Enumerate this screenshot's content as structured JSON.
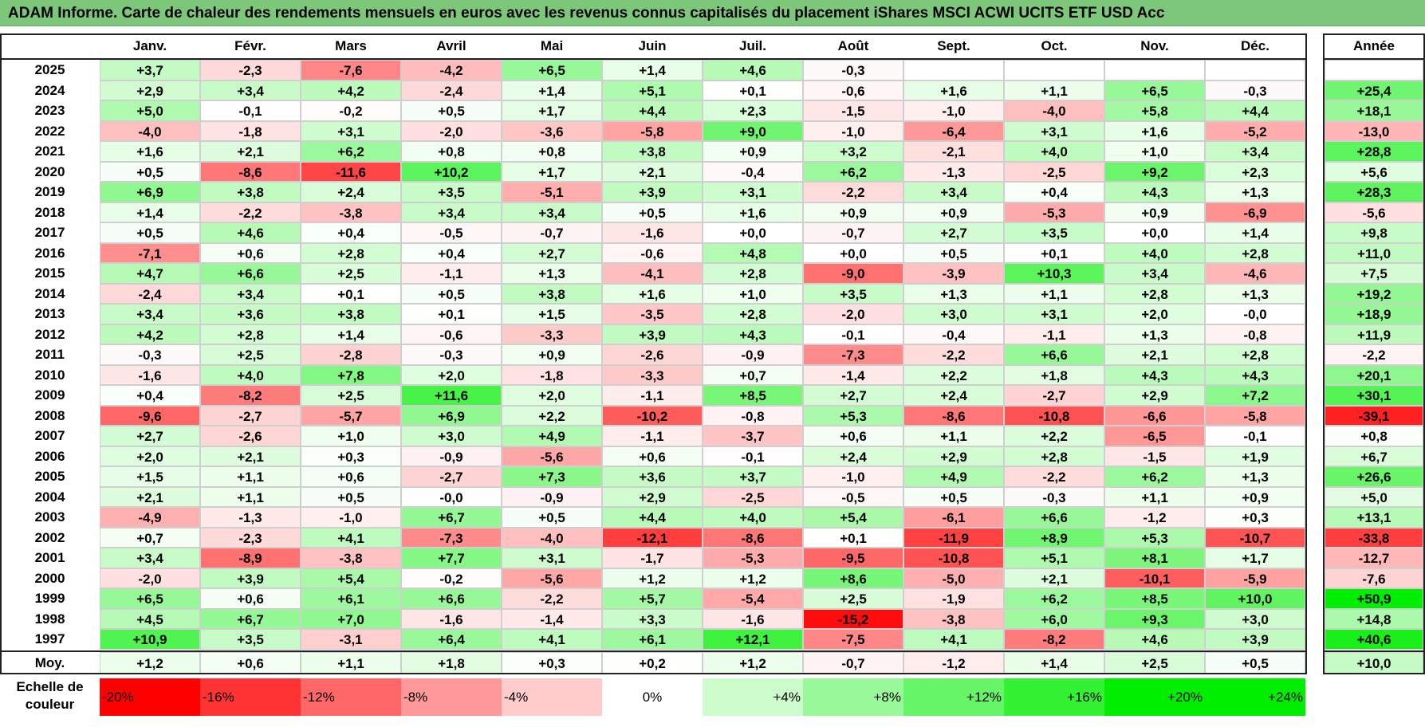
{
  "title": "ADAM Informe. Carte de chaleur des rendements mensuels en euros avec les revenus connus capitalisés du placement iShares MSCI ACWI UCITS ETF USD Acc",
  "chart_data": {
    "type": "heatmap",
    "title": "ADAM Informe. Carte de chaleur des rendements mensuels en euros avec les revenus connus capitalisés du placement iShares MSCI ACWI UCITS ETF USD Acc",
    "columns": [
      "Janv.",
      "Févr.",
      "Mars",
      "Avril",
      "Mai",
      "Juin",
      "Juil.",
      "Août",
      "Sept.",
      "Oct.",
      "Nov.",
      "Déc."
    ],
    "year_header": "Année",
    "rows": [
      {
        "year": "2025",
        "values": [
          "+3,7",
          "-2,3",
          "-7,6",
          "-4,2",
          "+6,5",
          "+1,4",
          "+4,6",
          "-0,3",
          "",
          "",
          "",
          ""
        ],
        "annual": ""
      },
      {
        "year": "2024",
        "values": [
          "+2,9",
          "+3,4",
          "+4,2",
          "-2,4",
          "+1,4",
          "+5,1",
          "+0,1",
          "-0,6",
          "+1,6",
          "+1,1",
          "+6,5",
          "-0,3"
        ],
        "annual": "+25,4"
      },
      {
        "year": "2023",
        "values": [
          "+5,0",
          "-0,1",
          "-0,2",
          "+0,5",
          "+1,7",
          "+4,4",
          "+2,3",
          "-1,5",
          "-1,0",
          "-4,0",
          "+5,8",
          "+4,4"
        ],
        "annual": "+18,1"
      },
      {
        "year": "2022",
        "values": [
          "-4,0",
          "-1,8",
          "+3,1",
          "-2,0",
          "-3,6",
          "-5,8",
          "+9,0",
          "-1,0",
          "-6,4",
          "+3,1",
          "+1,6",
          "-5,2"
        ],
        "annual": "-13,0"
      },
      {
        "year": "2021",
        "values": [
          "+1,6",
          "+2,1",
          "+6,2",
          "+0,8",
          "+0,8",
          "+3,8",
          "+0,9",
          "+3,2",
          "-2,1",
          "+4,0",
          "+1,0",
          "+3,4"
        ],
        "annual": "+28,8"
      },
      {
        "year": "2020",
        "values": [
          "+0,5",
          "-8,6",
          "-11,6",
          "+10,2",
          "+1,7",
          "+2,1",
          "-0,4",
          "+6,2",
          "-1,3",
          "-2,5",
          "+9,2",
          "+2,3"
        ],
        "annual": "+5,6"
      },
      {
        "year": "2019",
        "values": [
          "+6,9",
          "+3,8",
          "+2,4",
          "+3,5",
          "-5,1",
          "+3,9",
          "+3,1",
          "-2,2",
          "+3,4",
          "+0,4",
          "+4,3",
          "+1,3"
        ],
        "annual": "+28,3"
      },
      {
        "year": "2018",
        "values": [
          "+1,4",
          "-2,2",
          "-3,8",
          "+3,4",
          "+3,4",
          "+0,5",
          "+1,6",
          "+0,9",
          "+0,9",
          "-5,3",
          "+0,9",
          "-6,9"
        ],
        "annual": "-5,6"
      },
      {
        "year": "2017",
        "values": [
          "+0,5",
          "+4,6",
          "+0,4",
          "-0,5",
          "-0,7",
          "-1,6",
          "+0,0",
          "-0,7",
          "+2,7",
          "+3,5",
          "+0,0",
          "+1,4"
        ],
        "annual": "+9,8"
      },
      {
        "year": "2016",
        "values": [
          "-7,1",
          "+0,6",
          "+2,8",
          "+0,4",
          "+2,7",
          "-0,6",
          "+4,8",
          "+0,0",
          "+0,5",
          "+0,1",
          "+4,0",
          "+2,8"
        ],
        "annual": "+11,0"
      },
      {
        "year": "2015",
        "values": [
          "+4,7",
          "+6,6",
          "+2,5",
          "-1,1",
          "+1,3",
          "-4,1",
          "+2,8",
          "-9,0",
          "-3,9",
          "+10,3",
          "+3,4",
          "-4,6"
        ],
        "annual": "+7,5"
      },
      {
        "year": "2014",
        "values": [
          "-2,4",
          "+3,4",
          "+0,1",
          "+0,5",
          "+3,8",
          "+1,6",
          "+1,0",
          "+3,5",
          "+1,3",
          "+1,1",
          "+2,8",
          "+1,3"
        ],
        "annual": "+19,2"
      },
      {
        "year": "2013",
        "values": [
          "+3,4",
          "+3,6",
          "+3,8",
          "+0,1",
          "+1,5",
          "-3,5",
          "+2,8",
          "-2,0",
          "+3,0",
          "+3,1",
          "+2,0",
          "-0,0"
        ],
        "annual": "+18,9"
      },
      {
        "year": "2012",
        "values": [
          "+4,2",
          "+2,8",
          "+1,4",
          "-0,6",
          "-3,3",
          "+3,9",
          "+4,3",
          "-0,1",
          "-0,4",
          "-1,1",
          "+1,3",
          "-0,8"
        ],
        "annual": "+11,9"
      },
      {
        "year": "2011",
        "values": [
          "-0,3",
          "+2,5",
          "-2,8",
          "-0,3",
          "+0,9",
          "-2,6",
          "-0,9",
          "-7,3",
          "-2,2",
          "+6,6",
          "+2,1",
          "+2,8"
        ],
        "annual": "-2,2"
      },
      {
        "year": "2010",
        "values": [
          "-1,6",
          "+4,0",
          "+7,8",
          "+2,0",
          "-1,8",
          "-3,3",
          "+0,7",
          "-1,4",
          "+2,2",
          "+1,8",
          "+4,3",
          "+4,3"
        ],
        "annual": "+20,1"
      },
      {
        "year": "2009",
        "values": [
          "+0,4",
          "-8,2",
          "+2,5",
          "+11,6",
          "+2,0",
          "-1,1",
          "+8,5",
          "+2,7",
          "+2,4",
          "-2,7",
          "+2,9",
          "+7,2"
        ],
        "annual": "+30,1"
      },
      {
        "year": "2008",
        "values": [
          "-9,6",
          "-2,7",
          "-5,7",
          "+6,9",
          "+2,2",
          "-10,2",
          "-0,8",
          "+5,3",
          "-8,6",
          "-10,8",
          "-6,6",
          "-5,8"
        ],
        "annual": "-39,1"
      },
      {
        "year": "2007",
        "values": [
          "+2,7",
          "-2,6",
          "+1,0",
          "+3,0",
          "+4,9",
          "-1,1",
          "-3,7",
          "+0,6",
          "+1,1",
          "+2,2",
          "-6,5",
          "-0,1"
        ],
        "annual": "+0,8"
      },
      {
        "year": "2006",
        "values": [
          "+2,0",
          "+2,1",
          "+0,3",
          "-0,9",
          "-5,6",
          "+0,6",
          "-0,1",
          "+2,4",
          "+2,9",
          "+2,8",
          "-1,5",
          "+1,9"
        ],
        "annual": "+6,7"
      },
      {
        "year": "2005",
        "values": [
          "+1,5",
          "+1,1",
          "+0,6",
          "-2,7",
          "+7,3",
          "+3,6",
          "+3,7",
          "-1,0",
          "+4,9",
          "-2,2",
          "+6,2",
          "+1,3"
        ],
        "annual": "+26,6"
      },
      {
        "year": "2004",
        "values": [
          "+2,1",
          "+1,1",
          "+0,5",
          "-0,0",
          "-0,9",
          "+2,9",
          "-2,5",
          "-0,5",
          "+0,5",
          "-0,3",
          "+1,1",
          "+0,9"
        ],
        "annual": "+5,0"
      },
      {
        "year": "2003",
        "values": [
          "-4,9",
          "-1,3",
          "-1,0",
          "+6,7",
          "+0,5",
          "+4,4",
          "+4,0",
          "+5,4",
          "-6,1",
          "+6,6",
          "-1,2",
          "+0,3"
        ],
        "annual": "+13,1"
      },
      {
        "year": "2002",
        "values": [
          "+0,7",
          "-2,3",
          "+4,1",
          "-7,3",
          "-4,0",
          "-12,1",
          "-8,6",
          "+0,1",
          "-11,9",
          "+8,9",
          "+5,3",
          "-10,7"
        ],
        "annual": "-33,8"
      },
      {
        "year": "2001",
        "values": [
          "+3,4",
          "-8,9",
          "-3,8",
          "+7,7",
          "+3,1",
          "-1,7",
          "-5,3",
          "-9,5",
          "-10,8",
          "+5,1",
          "+8,1",
          "+1,7"
        ],
        "annual": "-12,7"
      },
      {
        "year": "2000",
        "values": [
          "-2,0",
          "+3,9",
          "+5,4",
          "-0,2",
          "-5,6",
          "+1,2",
          "+1,2",
          "+8,6",
          "-5,0",
          "+2,1",
          "-10,1",
          "-5,9"
        ],
        "annual": "-7,6"
      },
      {
        "year": "1999",
        "values": [
          "+6,5",
          "+0,6",
          "+6,1",
          "+6,6",
          "-2,2",
          "+5,7",
          "-5,4",
          "+2,5",
          "-1,9",
          "+6,2",
          "+8,5",
          "+10,0"
        ],
        "annual": "+50,9"
      },
      {
        "year": "1998",
        "values": [
          "+4,5",
          "+6,7",
          "+7,0",
          "-1,6",
          "-1,4",
          "+3,3",
          "-1,6",
          "-15,2",
          "-3,8",
          "+6,0",
          "+9,3",
          "+3,0"
        ],
        "annual": "+14,8"
      },
      {
        "year": "1997",
        "values": [
          "+10,9",
          "+3,5",
          "-3,1",
          "+6,4",
          "+4,1",
          "+6,1",
          "+12,1",
          "-7,5",
          "+4,1",
          "-8,2",
          "+4,6",
          "+3,9"
        ],
        "annual": "+40,6"
      }
    ],
    "average": {
      "label": "Moy.",
      "values": [
        "+1,2",
        "+0,6",
        "+1,1",
        "+1,8",
        "+0,3",
        "+0,2",
        "+1,2",
        "-0,7",
        "-1,2",
        "+1,4",
        "+2,5",
        "+0,5"
      ],
      "annual": "+10,0"
    },
    "scale": {
      "label": "Echelle de couleur",
      "stops": [
        "-20%",
        "-16%",
        "-12%",
        "-8%",
        "-4%",
        "0%",
        "+4%",
        "+8%",
        "+12%",
        "+16%",
        "+20%",
        "+24%"
      ]
    },
    "colors": {
      "negative_max": "#ff0000",
      "neutral": "#ffffff",
      "positive_max": "#00ee00",
      "title_bar": "#7dc77b"
    }
  }
}
